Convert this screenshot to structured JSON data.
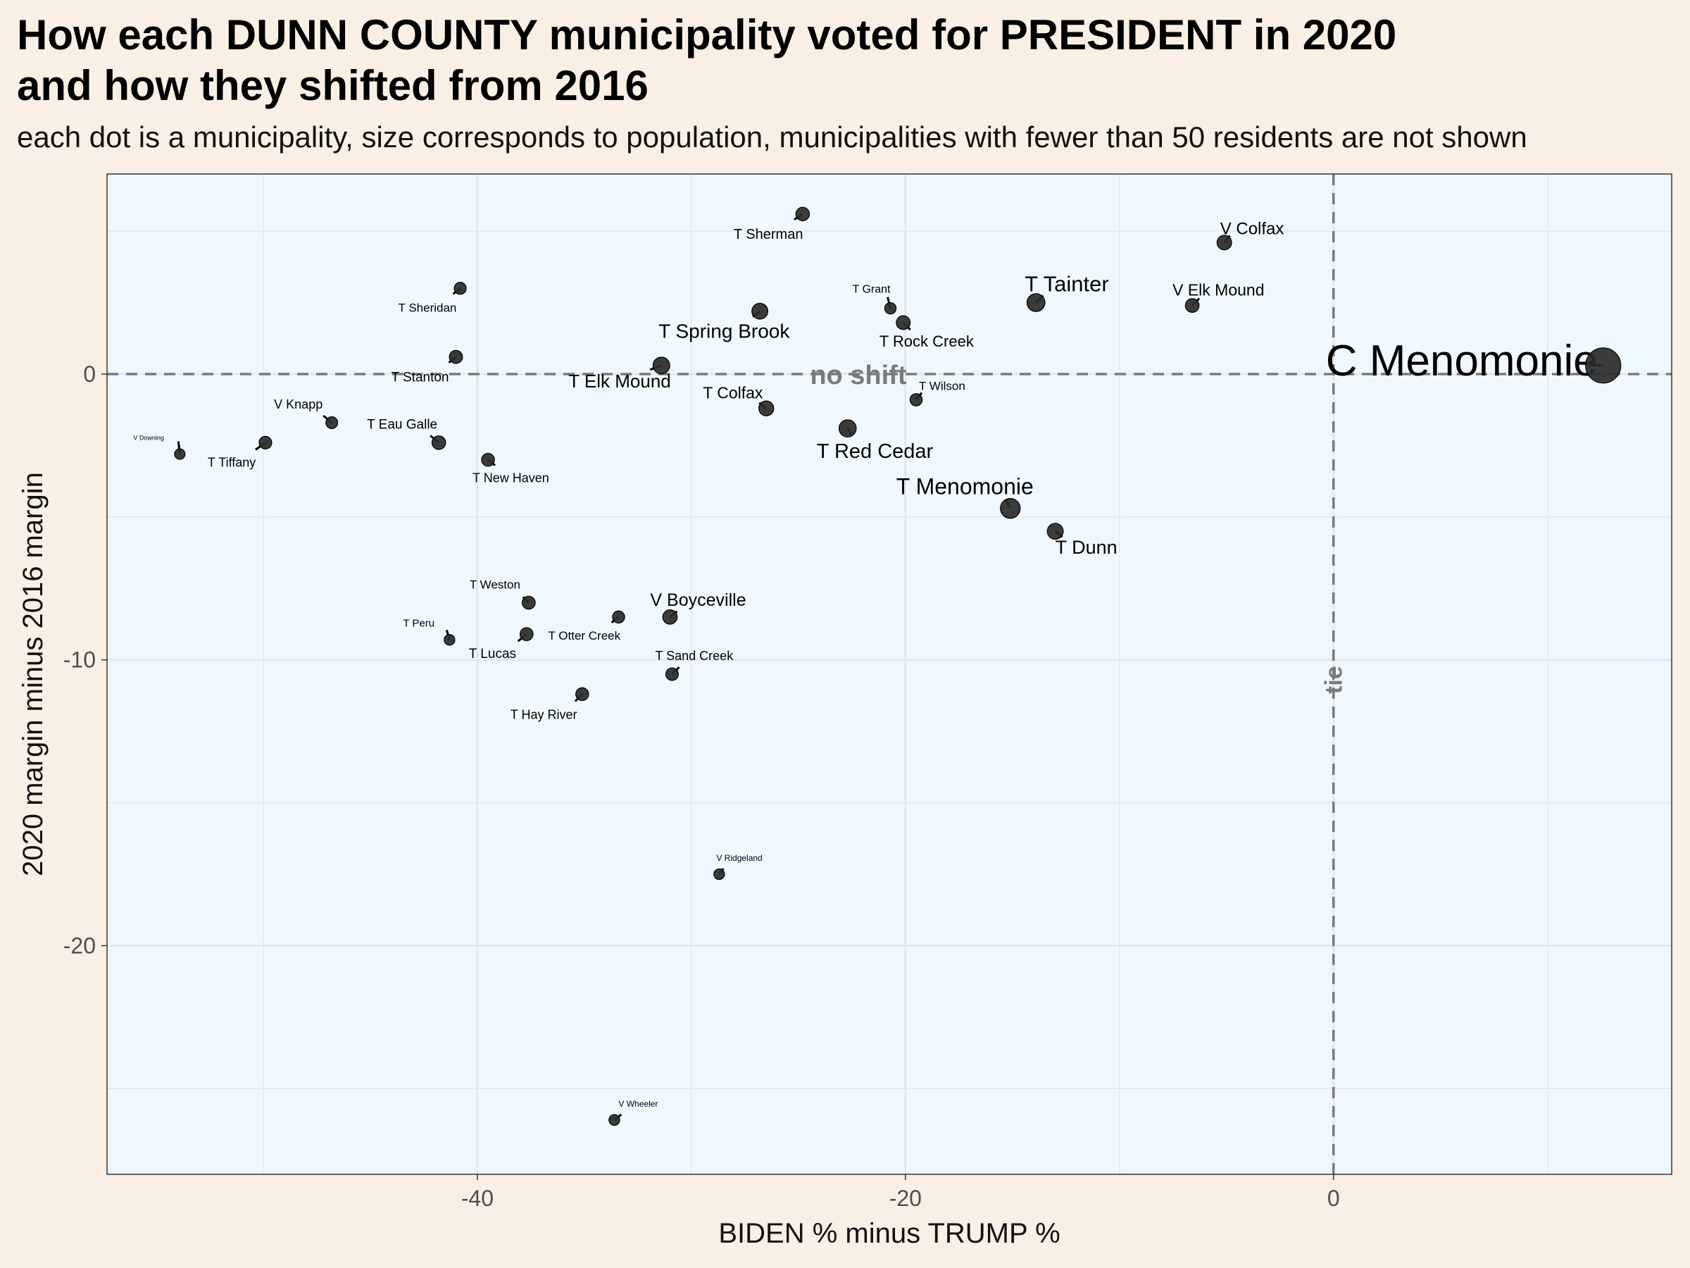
{
  "title": "How each DUNN COUNTY municipality voted for PRESIDENT in 2020\nand how they shifted from 2016",
  "subtitle": "each dot is a municipality, size corresponds to population, municipalities with fewer than 50 residents are not shown",
  "chart_data": {
    "type": "scatter",
    "xlabel": "BIDEN % minus TRUMP %",
    "ylabel": "2020 margin minus 2016 margin",
    "xlim": [
      -57.3,
      15.8
    ],
    "ylim": [
      -28.0,
      7.0
    ],
    "x_ticks": [
      -40,
      -20,
      0
    ],
    "y_ticks": [
      0,
      -10,
      -20
    ],
    "grid": true,
    "reference_lines": [
      {
        "axis": "y",
        "value": 0,
        "label": "no shift"
      },
      {
        "axis": "x",
        "value": 0,
        "label": "tie"
      }
    ],
    "colors": {
      "panel_bg": "#f0f8ff",
      "page_bg": "#faefe5",
      "point": "#2a2a2a",
      "reference": "#7a7a7a"
    },
    "points": [
      {
        "name": "C Menomonie",
        "x": 12.6,
        "y": 0.3,
        "pop": 16000
      },
      {
        "name": "V Colfax",
        "x": -5.1,
        "y": 4.6,
        "pop": 1150
      },
      {
        "name": "V Elk Mound",
        "x": -6.6,
        "y": 2.4,
        "pop": 900
      },
      {
        "name": "T Tainter",
        "x": -13.9,
        "y": 2.5,
        "pop": 2400
      },
      {
        "name": "T Rock Creek",
        "x": -20.1,
        "y": 1.8,
        "pop": 950
      },
      {
        "name": "T Grant",
        "x": -20.7,
        "y": 2.3,
        "pop": 380
      },
      {
        "name": "T Wilson",
        "x": -19.5,
        "y": -0.9,
        "pop": 550
      },
      {
        "name": "T Red Cedar",
        "x": -22.7,
        "y": -1.9,
        "pop": 2100
      },
      {
        "name": "T Menomonie",
        "x": -15.1,
        "y": -4.7,
        "pop": 3300
      },
      {
        "name": "T Dunn",
        "x": -13.0,
        "y": -5.5,
        "pop": 1600
      },
      {
        "name": "T Sherman",
        "x": -24.8,
        "y": 5.6,
        "pop": 850
      },
      {
        "name": "T Spring Brook",
        "x": -26.8,
        "y": 2.2,
        "pop": 1600
      },
      {
        "name": "T Colfax",
        "x": -26.5,
        "y": -1.2,
        "pop": 1250
      },
      {
        "name": "T Elk Mound",
        "x": -31.4,
        "y": 0.3,
        "pop": 1900
      },
      {
        "name": "V Boyceville",
        "x": -31.0,
        "y": -8.5,
        "pop": 1100
      },
      {
        "name": "T Sand Creek",
        "x": -30.9,
        "y": -10.5,
        "pop": 620
      },
      {
        "name": "T Otter Creek",
        "x": -33.4,
        "y": -8.5,
        "pop": 520
      },
      {
        "name": "T Hay River",
        "x": -35.1,
        "y": -11.2,
        "pop": 680
      },
      {
        "name": "T Weston",
        "x": -37.6,
        "y": -8.0,
        "pop": 720
      },
      {
        "name": "T Lucas",
        "x": -37.7,
        "y": -9.1,
        "pop": 720
      },
      {
        "name": "T Peru",
        "x": -41.3,
        "y": -9.3,
        "pop": 260
      },
      {
        "name": "V Ridgeland",
        "x": -28.7,
        "y": -17.5,
        "pop": 260
      },
      {
        "name": "V Wheeler",
        "x": -33.6,
        "y": -26.1,
        "pop": 280
      },
      {
        "name": "T Sheridan",
        "x": -40.8,
        "y": 3.0,
        "pop": 500
      },
      {
        "name": "T Stanton",
        "x": -41.0,
        "y": 0.6,
        "pop": 750
      },
      {
        "name": "T Eau Galle",
        "x": -41.8,
        "y": -2.4,
        "pop": 880
      },
      {
        "name": "T New Haven",
        "x": -39.5,
        "y": -3.0,
        "pop": 680
      },
      {
        "name": "V Knapp",
        "x": -46.8,
        "y": -1.7,
        "pop": 460
      },
      {
        "name": "T Tiffany",
        "x": -49.9,
        "y": -2.4,
        "pop": 630
      },
      {
        "name": "V Downing",
        "x": -53.9,
        "y": -2.8,
        "pop": 240
      }
    ]
  }
}
